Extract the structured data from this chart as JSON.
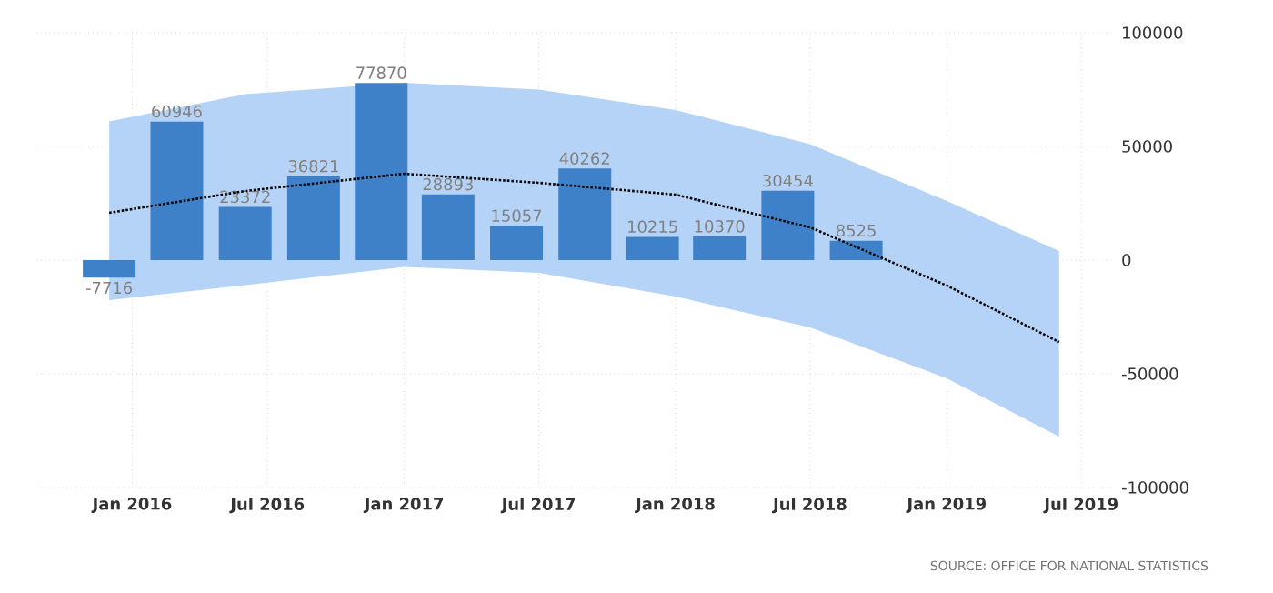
{
  "chart_data": {
    "type": "bar",
    "x": [
      "2015-12",
      "2016-03",
      "2016-06",
      "2016-09",
      "2016-12",
      "2017-03",
      "2017-06",
      "2017-09",
      "2017-12",
      "2018-03",
      "2018-06",
      "2018-09"
    ],
    "xlim": [
      "2015-08-25",
      "2019-08-15"
    ],
    "xticks": [
      {
        "value": "2016-01",
        "label": "Jan 2016"
      },
      {
        "value": "2016-07",
        "label": "Jul 2016"
      },
      {
        "value": "2017-01",
        "label": "Jan 2017"
      },
      {
        "value": "2017-07",
        "label": "Jul 2017"
      },
      {
        "value": "2018-01",
        "label": "Jan 2018"
      },
      {
        "value": "2018-07",
        "label": "Jul 2018"
      },
      {
        "value": "2019-01",
        "label": "Jan 2019"
      },
      {
        "value": "2019-07",
        "label": "Jul 2019"
      }
    ],
    "ylim": [
      -100000,
      100000
    ],
    "yticks": [
      -100000,
      -50000,
      0,
      50000,
      100000
    ],
    "grid": true,
    "series": [
      {
        "color": "#3f81c9",
        "values": [
          -7716,
          60946,
          23372,
          36821,
          77870,
          28893,
          15057,
          40262,
          10215,
          10370,
          30454,
          8525
        ],
        "value_labels": [
          "-7716",
          "60946",
          "23372",
          "36821",
          "77870",
          "28893",
          "15057",
          "40262",
          "10215",
          "10370",
          "30454",
          "8525"
        ]
      },
      {
        "type": "line",
        "color": "#000000",
        "line_style": "dotted",
        "x": [
          "2015-12",
          "2016-06",
          "2017-01",
          "2017-07",
          "2018-01",
          "2018-07",
          "2019-01",
          "2019-06"
        ],
        "values": [
          20800,
          30400,
          38000,
          34000,
          28800,
          14400,
          -11200,
          -36000
        ],
        "lower": [
          -17600,
          -11000,
          -3000,
          -5600,
          -16000,
          -29600,
          -52000,
          -77600
        ],
        "upper": [
          61000,
          73000,
          78000,
          75000,
          66000,
          51000,
          26000,
          4000
        ]
      }
    ],
    "annotations": [
      "SOURCE: OFFICE FOR NATIONAL STATISTICS"
    ]
  }
}
